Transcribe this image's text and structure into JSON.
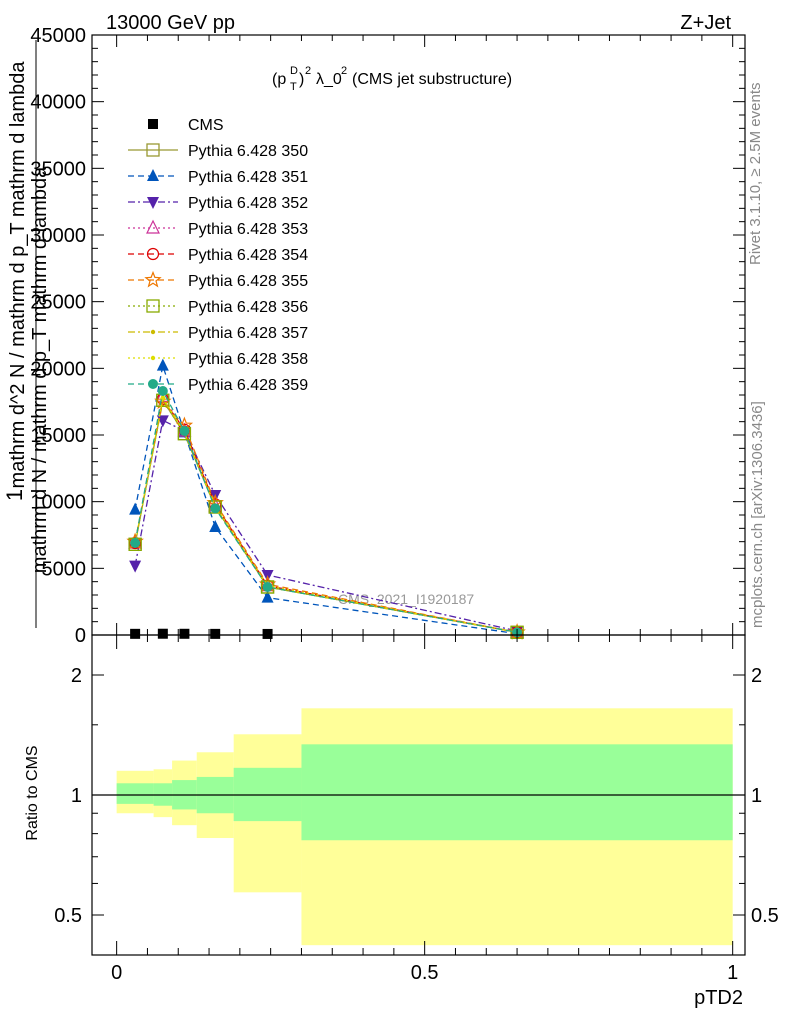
{
  "header": {
    "left": "13000 GeV pp",
    "right": "Z+Jet"
  },
  "side": {
    "rivet": "Rivet 3.1.10, ≥ 2.5M events",
    "mcplots": "mcplots.cern.ch [arXiv:1306.3436]"
  },
  "watermark": "CMS_2021_I1920187",
  "ylabel_main": [
    "1",
    "mathrm d N / mathrm d p_T mathrm d lambda",
    "mathrm d^2 N / mathrm d p_T mathrm d lambda"
  ],
  "ylabel_ratio": "Ratio to CMS",
  "xlabel": "pTD2",
  "chart_data": [
    {
      "type": "line",
      "title": "(p_T^D)^2 λ_0^2 (CMS jet substructure)",
      "xlim": [
        -0.04,
        1.02
      ],
      "ylim": [
        0,
        45000
      ],
      "yticks": [
        0,
        5000,
        10000,
        15000,
        20000,
        25000,
        30000,
        35000,
        40000,
        45000
      ],
      "ytick_labels": [
        "0",
        "5000",
        "10000",
        "15000",
        "20000",
        "25000",
        "30000",
        "35000",
        "40000",
        "45000"
      ],
      "legend_position": "top-left",
      "data_series": {
        "name": "CMS",
        "x": [
          0.03,
          0.075,
          0.11,
          0.16,
          0.245
        ],
        "y": [
          12,
          20,
          16,
          9,
          4
        ]
      },
      "series": [
        {
          "name": "Pythia 6.428 350",
          "color": "#999933",
          "marker": "open-square",
          "dash": "solid",
          "x": [
            0.03,
            0.075,
            0.11,
            0.16,
            0.245,
            0.65
          ],
          "y": [
            6800,
            17600,
            15100,
            9600,
            3600,
            200
          ]
        },
        {
          "name": "Pythia 6.428 351",
          "color": "#0055bb",
          "marker": "filled-triangle-up",
          "dash": "dashed",
          "x": [
            0.03,
            0.075,
            0.11,
            0.16,
            0.245,
            0.65
          ],
          "y": [
            9400,
            20200,
            15200,
            8100,
            2800,
            100
          ]
        },
        {
          "name": "Pythia 6.428 352",
          "color": "#5522aa",
          "marker": "filled-triangle-down",
          "dash": "dashdot",
          "x": [
            0.03,
            0.075,
            0.11,
            0.16,
            0.245,
            0.65
          ],
          "y": [
            5200,
            16100,
            15300,
            10500,
            4500,
            300
          ]
        },
        {
          "name": "Pythia 6.428 353",
          "color": "#cc3399",
          "marker": "open-triangle-up",
          "dash": "dotted",
          "x": [
            0.03,
            0.075,
            0.11,
            0.16,
            0.245,
            0.65
          ],
          "y": [
            6900,
            17900,
            15300,
            9700,
            3700,
            200
          ]
        },
        {
          "name": "Pythia 6.428 354",
          "color": "#dd0000",
          "marker": "open-circle",
          "dash": "dashed",
          "x": [
            0.03,
            0.075,
            0.11,
            0.16,
            0.245,
            0.65
          ],
          "y": [
            6900,
            17700,
            15400,
            9800,
            3700,
            200
          ]
        },
        {
          "name": "Pythia 6.428 355",
          "color": "#ee7700",
          "marker": "open-star",
          "dash": "dashed",
          "x": [
            0.03,
            0.075,
            0.11,
            0.16,
            0.245,
            0.65
          ],
          "y": [
            7000,
            17500,
            15700,
            9900,
            3800,
            200
          ]
        },
        {
          "name": "Pythia 6.428 356",
          "color": "#88aa00",
          "marker": "open-square",
          "dash": "dotted",
          "x": [
            0.03,
            0.075,
            0.11,
            0.16,
            0.245,
            0.65
          ],
          "y": [
            6800,
            17600,
            15100,
            9600,
            3600,
            200
          ]
        },
        {
          "name": "Pythia 6.428 357",
          "color": "#ccbb00",
          "marker": "small-dot",
          "dash": "dashdot",
          "x": [
            0.03,
            0.075,
            0.11,
            0.16,
            0.245,
            0.65
          ],
          "y": [
            6900,
            17700,
            15200,
            9600,
            3600,
            200
          ]
        },
        {
          "name": "Pythia 6.428 358",
          "color": "#dddd00",
          "marker": "small-dot",
          "dash": "dotted",
          "x": [
            0.03,
            0.075,
            0.11,
            0.16,
            0.245,
            0.65
          ],
          "y": [
            6800,
            17800,
            15200,
            9700,
            3700,
            200
          ]
        },
        {
          "name": "Pythia 6.428 359",
          "color": "#22aa88",
          "marker": "filled-circle",
          "dash": "dashed",
          "x": [
            0.03,
            0.075,
            0.11,
            0.16,
            0.245,
            0.65
          ],
          "y": [
            6900,
            18300,
            15300,
            9500,
            3600,
            200
          ]
        }
      ]
    },
    {
      "type": "area",
      "xlim": [
        -0.04,
        1.02
      ],
      "ylim": [
        0.4,
        2.3
      ],
      "yticks": [
        0.5,
        1,
        2
      ],
      "ytick_labels": [
        "0.5",
        "1",
        "2"
      ],
      "xticks": [
        0,
        0.5,
        1
      ],
      "xtick_labels": [
        "0",
        "0.5",
        "1"
      ],
      "reference_line": 1,
      "bin_edges": [
        0,
        0.06,
        0.09,
        0.13,
        0.19,
        0.3,
        1.0
      ],
      "inner_band": {
        "color": "#99ff99",
        "lo": [
          0.95,
          0.94,
          0.92,
          0.9,
          0.86,
          0.77
        ],
        "hi": [
          1.07,
          1.07,
          1.09,
          1.11,
          1.17,
          1.34
        ]
      },
      "outer_band": {
        "color": "#ffff99",
        "lo": [
          0.9,
          0.88,
          0.84,
          0.78,
          0.57,
          0.42
        ],
        "hi": [
          1.15,
          1.16,
          1.22,
          1.28,
          1.42,
          1.65
        ]
      }
    }
  ]
}
